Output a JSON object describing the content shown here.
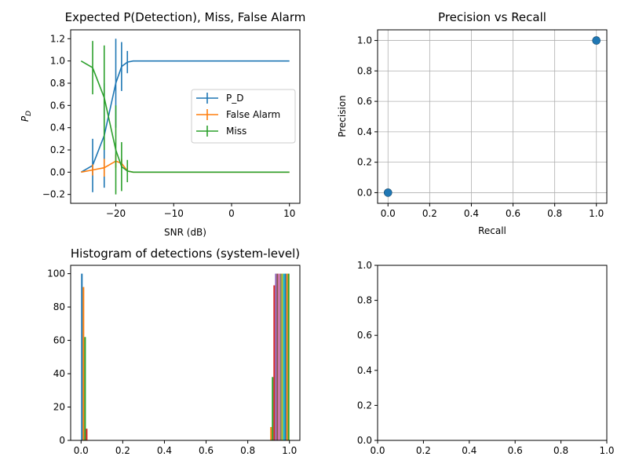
{
  "chart_data": [
    {
      "type": "line",
      "title": "Expected P(Detection), Miss, False Alarm",
      "xlabel": "SNR (dB)",
      "ylabel": "P_D",
      "xlim": [
        -27.8,
        11.8
      ],
      "ylim": [
        -0.28,
        1.28
      ],
      "xticks": [
        -20,
        -10,
        0,
        10
      ],
      "xtick_labels": [
        "−20",
        "−10",
        "0",
        "10"
      ],
      "yticks": [
        -0.2,
        0.0,
        0.2,
        0.4,
        0.6,
        0.8,
        1.0,
        1.2
      ],
      "ytick_labels": [
        "−0.2",
        "0.0",
        "0.2",
        "0.4",
        "0.6",
        "0.8",
        "1.0",
        "1.2"
      ],
      "grid": false,
      "legend": "center-right",
      "series": [
        {
          "name": "P_D",
          "color": "#1f77b4",
          "x": [
            -26,
            -24,
            -22,
            -20,
            -19,
            -18,
            -17,
            -15,
            -10,
            -5,
            0,
            5,
            10
          ],
          "y": [
            0.0,
            0.06,
            0.33,
            0.8,
            0.95,
            0.99,
            1.0,
            1.0,
            1.0,
            1.0,
            1.0,
            1.0,
            1.0
          ],
          "error_bars": [
            {
              "x": -24,
              "y": 0.06,
              "err": 0.24
            },
            {
              "x": -22,
              "y": 0.33,
              "err": 0.47
            },
            {
              "x": -20,
              "y": 0.8,
              "err": 0.4
            },
            {
              "x": -19,
              "y": 0.95,
              "err": 0.22
            },
            {
              "x": -18,
              "y": 0.99,
              "err": 0.1
            }
          ]
        },
        {
          "name": "False Alarm",
          "color": "#ff7f0e",
          "x": [
            -26,
            -24,
            -22,
            -20,
            -19,
            -18,
            -17,
            -15,
            -10,
            -5,
            0,
            5,
            10
          ],
          "y": [
            0.0,
            0.02,
            0.04,
            0.1,
            0.08,
            0.01,
            0.0,
            0.0,
            0.0,
            0.0,
            0.0,
            0.0,
            0.0
          ],
          "error_bars": [
            {
              "x": -24,
              "y": 0.02,
              "err": 0.05
            },
            {
              "x": -22,
              "y": 0.04,
              "err": 0.08
            },
            {
              "x": -20,
              "y": 0.1,
              "err": 0.06
            },
            {
              "x": -19,
              "y": 0.08,
              "err": 0.04
            }
          ]
        },
        {
          "name": "Miss",
          "color": "#2ca02c",
          "x": [
            -26,
            -24,
            -22,
            -20,
            -19,
            -18,
            -17,
            -15,
            -10,
            -5,
            0,
            5,
            10
          ],
          "y": [
            1.0,
            0.94,
            0.67,
            0.2,
            0.05,
            0.01,
            0.0,
            0.0,
            0.0,
            0.0,
            0.0,
            0.0,
            0.0
          ],
          "error_bars": [
            {
              "x": -24,
              "y": 0.94,
              "err": 0.24
            },
            {
              "x": -22,
              "y": 0.67,
              "err": 0.47
            },
            {
              "x": -20,
              "y": 0.2,
              "err": 0.4
            },
            {
              "x": -19,
              "y": 0.05,
              "err": 0.22
            },
            {
              "x": -18,
              "y": 0.01,
              "err": 0.1
            }
          ]
        }
      ]
    },
    {
      "type": "scatter",
      "title": "Precision vs Recall",
      "xlabel": "Recall",
      "ylabel": "Precision",
      "xlim": [
        -0.05,
        1.05
      ],
      "ylim": [
        -0.07,
        1.07
      ],
      "xticks": [
        0.0,
        0.2,
        0.4,
        0.6,
        0.8,
        1.0
      ],
      "xtick_labels": [
        "0.0",
        "0.2",
        "0.4",
        "0.6",
        "0.8",
        "1.0"
      ],
      "yticks": [
        0.0,
        0.2,
        0.4,
        0.6,
        0.8,
        1.0
      ],
      "ytick_labels": [
        "0.0",
        "0.2",
        "0.4",
        "0.6",
        "0.8",
        "1.0"
      ],
      "grid": true,
      "series": [
        {
          "color": "#1f77b4",
          "x": [
            0.0,
            1.0
          ],
          "y": [
            0.0,
            1.0
          ]
        }
      ]
    },
    {
      "type": "bar",
      "title": "Histogram of detections (system-level)",
      "xlabel": "",
      "ylabel": "",
      "xlim": [
        -0.05,
        1.05
      ],
      "ylim": [
        0,
        105
      ],
      "xticks": [
        0.0,
        0.2,
        0.4,
        0.6,
        0.8,
        1.0
      ],
      "xtick_labels": [
        "0.0",
        "0.2",
        "0.4",
        "0.6",
        "0.8",
        "1.0"
      ],
      "yticks": [
        0,
        20,
        40,
        60,
        80,
        100
      ],
      "ytick_labels": [
        "0",
        "20",
        "40",
        "60",
        "80",
        "100"
      ],
      "grid": false,
      "bin_width": 0.1,
      "groups": [
        {
          "bin_start": 0.0,
          "values": [
            100,
            92,
            62,
            7,
            0,
            0,
            0,
            0,
            0,
            0,
            0,
            0,
            0
          ]
        },
        {
          "bin_start": 0.9,
          "values": [
            0,
            8,
            38,
            93,
            100,
            100,
            100,
            100,
            100,
            100,
            100,
            100,
            100
          ]
        }
      ],
      "colors": [
        "#1f77b4",
        "#ff7f0e",
        "#2ca02c",
        "#d62728",
        "#9467bd",
        "#8c564b",
        "#e377c2",
        "#7f7f7f",
        "#bcbd22",
        "#17becf",
        "#1f77b4",
        "#ff7f0e",
        "#2ca02c"
      ]
    },
    {
      "type": "line",
      "title": "",
      "xlabel": "",
      "ylabel": "",
      "xlim": [
        0.0,
        1.0
      ],
      "ylim": [
        0.0,
        1.0
      ],
      "xticks": [
        0.0,
        0.2,
        0.4,
        0.6,
        0.8,
        1.0
      ],
      "xtick_labels": [
        "0.0",
        "0.2",
        "0.4",
        "0.6",
        "0.8",
        "1.0"
      ],
      "yticks": [
        0.0,
        0.2,
        0.4,
        0.6,
        0.8,
        1.0
      ],
      "ytick_labels": [
        "0.0",
        "0.2",
        "0.4",
        "0.6",
        "0.8",
        "1.0"
      ],
      "grid": false,
      "series": []
    }
  ]
}
